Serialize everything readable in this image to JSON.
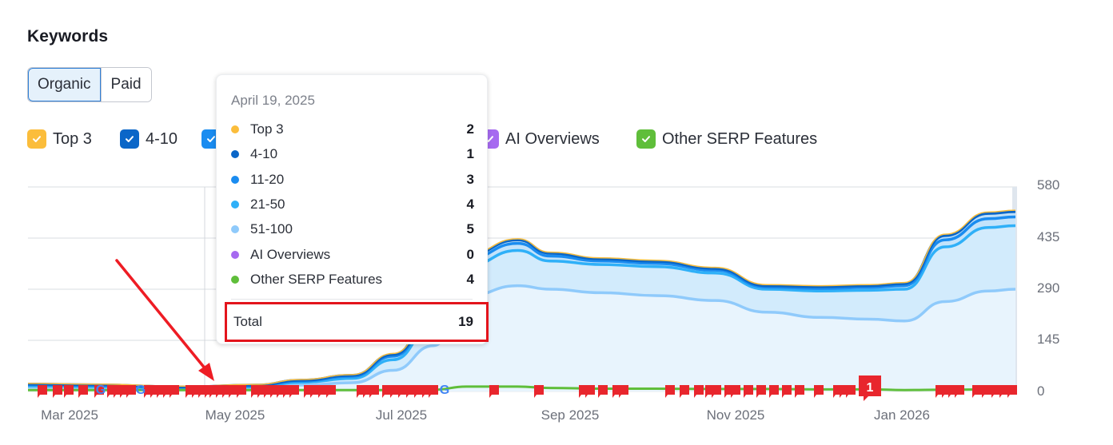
{
  "header": {
    "title": "Keywords"
  },
  "toggle": {
    "options": [
      {
        "label": "Organic",
        "active": true
      },
      {
        "label": "Paid",
        "active": false
      }
    ]
  },
  "legend": {
    "items": [
      {
        "label": "Top 3",
        "color": "#fbbd3b",
        "checked": true,
        "x": 0
      },
      {
        "label": "4-10",
        "color": "#0a66c8",
        "checked": true,
        "x": 116
      },
      {
        "label": "11-20",
        "color": "#1a8cf0",
        "checked": true,
        "x": 218
      },
      {
        "label": "21-50",
        "color": "#2fb0f8",
        "checked": true,
        "x": 318
      },
      {
        "label": "51-100",
        "color": "#8fcafb",
        "checked": true,
        "x": 430
      },
      {
        "label": "AI Overviews",
        "color": "#a66af0",
        "checked": true,
        "x": 566
      },
      {
        "label": "Other SERP Features",
        "color": "#5fbe3a",
        "checked": true,
        "x": 762
      }
    ]
  },
  "tooltip": {
    "date": "April 19, 2025",
    "rows": [
      {
        "label": "Top 3",
        "value": "2",
        "color": "#fbbd3b"
      },
      {
        "label": "4-10",
        "value": "1",
        "color": "#0a66c8"
      },
      {
        "label": "11-20",
        "value": "3",
        "color": "#1a8cf0"
      },
      {
        "label": "21-50",
        "value": "4",
        "color": "#2fb0f8"
      },
      {
        "label": "51-100",
        "value": "5",
        "color": "#8fcafb"
      },
      {
        "label": "AI Overviews",
        "value": "0",
        "color": "#a66af0"
      },
      {
        "label": "Other SERP Features",
        "value": "4",
        "color": "#5fbe3a"
      }
    ],
    "total_label": "Total",
    "total_value": "19"
  },
  "annotation_badge": {
    "label": "1"
  },
  "chart_data": {
    "type": "area",
    "title": "Keywords",
    "xlabel": "",
    "ylabel": "",
    "ylim": [
      0,
      580
    ],
    "yticks": [
      "580",
      "435",
      "290",
      "145",
      "0"
    ],
    "xticks": [
      "Mar 2025",
      "May 2025",
      "Jul 2025",
      "Sep 2025",
      "Nov 2025",
      "Jan 2026"
    ],
    "grid": true,
    "stacked": true,
    "legend_position": "top",
    "x": [
      "2025-02-20",
      "2025-03-15",
      "2025-04-19",
      "2025-05-15",
      "2025-06-01",
      "2025-06-20",
      "2025-07-05",
      "2025-07-20",
      "2025-08-01",
      "2025-08-20",
      "2025-09-01",
      "2025-09-20",
      "2025-10-10",
      "2025-11-01",
      "2025-11-20",
      "2025-12-10",
      "2025-12-28",
      "2026-01-10",
      "2026-01-25",
      "2026-02-10",
      "2026-02-20"
    ],
    "series": [
      {
        "name": "51-100",
        "color": "#8fcafb",
        "values": [
          12,
          10,
          5,
          8,
          18,
          25,
          60,
          130,
          270,
          300,
          290,
          280,
          272,
          258,
          225,
          210,
          205,
          200,
          255,
          285,
          290
        ]
      },
      {
        "name": "21-50",
        "color": "#2fb0f8",
        "values": [
          4,
          4,
          4,
          5,
          8,
          12,
          30,
          60,
          85,
          100,
          80,
          80,
          82,
          78,
          65,
          75,
          82,
          90,
          155,
          180,
          180
        ]
      },
      {
        "name": "11-20",
        "color": "#1a8cf0",
        "values": [
          3,
          3,
          3,
          3,
          4,
          6,
          10,
          14,
          20,
          20,
          14,
          10,
          9,
          8,
          6,
          7,
          8,
          10,
          20,
          25,
          25
        ]
      },
      {
        "name": "4-10",
        "color": "#0a66c8",
        "values": [
          2,
          2,
          1,
          2,
          2,
          3,
          5,
          8,
          10,
          10,
          8,
          6,
          6,
          5,
          4,
          5,
          5,
          6,
          12,
          15,
          15
        ]
      },
      {
        "name": "Top 3",
        "color": "#fbbd3b",
        "values": [
          2,
          2,
          2,
          2,
          2,
          2,
          3,
          3,
          3,
          3,
          3,
          3,
          3,
          3,
          3,
          3,
          3,
          3,
          4,
          4,
          4
        ]
      },
      {
        "name": "AI Overviews",
        "color": "#a66af0",
        "values": [
          0,
          0,
          0,
          0,
          0,
          0,
          0,
          0,
          0,
          0,
          0,
          0,
          0,
          0,
          0,
          0,
          0,
          0,
          0,
          0,
          0
        ]
      },
      {
        "name": "Other SERP Features",
        "color": "#5fbe3a",
        "values": [
          4,
          4,
          4,
          4,
          4,
          4,
          4,
          5,
          14,
          14,
          10,
          8,
          8,
          7,
          7,
          6,
          6,
          4,
          5,
          6,
          6
        ]
      }
    ],
    "hover_point": {
      "date": "April 19, 2025",
      "total": 19
    }
  }
}
